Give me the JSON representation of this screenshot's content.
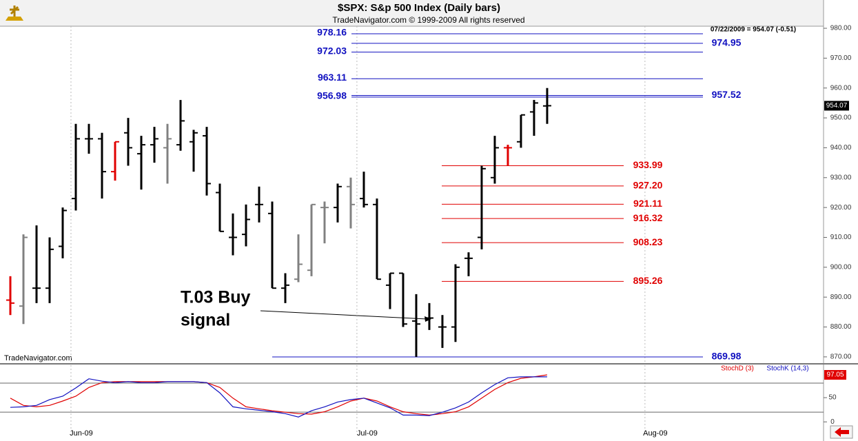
{
  "chart_data": [
    {
      "type": "ohlc",
      "title": "$SPX:  S&p 500 Index  (Daily bars)",
      "subtitle": "TradeNavigator.com © 1999-2009 All rights reserved",
      "header": "07/22/2009 = 954.07 (-0.51)",
      "watermark": "TradeNavigator.com",
      "annotation_lines": [
        "T.03 Buy",
        "signal"
      ],
      "categories": [
        null,
        null,
        null,
        null,
        null,
        null,
        null,
        null,
        null,
        null,
        null,
        null,
        null,
        null,
        null,
        null,
        null,
        null,
        null,
        null,
        null,
        null,
        null,
        null,
        null,
        null,
        null,
        null,
        null,
        null,
        null,
        null,
        null,
        null,
        null,
        null,
        null,
        null,
        null,
        null,
        null,
        null
      ],
      "open": [
        889,
        887,
        893,
        893,
        907,
        923,
        943,
        943,
        932,
        945,
        938,
        941,
        940,
        941,
        942,
        944,
        925,
        910,
        911,
        921,
        918,
        893,
        896,
        899,
        920,
        920,
        927,
        923,
        921,
        894,
        898,
        882,
        883,
        880,
        880,
        903,
        910,
        930,
        940,
        942,
        952,
        954
      ],
      "high": [
        897,
        911,
        914,
        910,
        920,
        948,
        948,
        945,
        942,
        950,
        944,
        947,
        948,
        956,
        946,
        947,
        928,
        918,
        921,
        927,
        922,
        898,
        911,
        921,
        922,
        928,
        930,
        932,
        923,
        898,
        898,
        891,
        888,
        884,
        901,
        905,
        934,
        944,
        941,
        951,
        956,
        960
      ],
      "low": [
        884,
        881,
        888,
        888,
        903,
        919,
        938,
        923,
        929,
        934,
        926,
        935,
        928,
        939,
        932,
        924,
        912,
        904,
        907,
        915,
        893,
        888,
        895,
        897,
        908,
        915,
        913,
        920,
        896,
        886,
        880,
        870,
        879,
        873,
        875,
        897,
        906,
        928,
        934,
        940,
        944,
        948
      ],
      "close": [
        888,
        910,
        893,
        906,
        919,
        943,
        943,
        932,
        942,
        940,
        941,
        943,
        943,
        949,
        945,
        928,
        912,
        910,
        916,
        921,
        893,
        894,
        901,
        921,
        920,
        927,
        921,
        921,
        896,
        898,
        881,
        881,
        883,
        880,
        900,
        903,
        933,
        940,
        940,
        951,
        955,
        954.07
      ],
      "bar_colors": [
        "#e00000",
        "#808080",
        "#000000",
        "#000000",
        "#000000",
        "#000000",
        "#000000",
        "#000000",
        "#e00000",
        "#000000",
        "#000000",
        "#000000",
        "#808080",
        "#000000",
        "#000000",
        "#000000",
        "#000000",
        "#000000",
        "#000000",
        "#000000",
        "#000000",
        "#000000",
        "#808080",
        "#808080",
        "#808080",
        "#000000",
        "#808080",
        "#000000",
        "#000000",
        "#000000",
        "#000000",
        "#000000",
        "#000000",
        "#000000",
        "#000000",
        "#000000",
        "#000000",
        "#000000",
        "#e00000",
        "#000000",
        "#000000",
        "#000000"
      ],
      "ylim": [
        867.9,
        980.7
      ],
      "yticks": [
        {
          "value": 870,
          "label": "870.00"
        },
        {
          "value": 880,
          "label": "880.00"
        },
        {
          "value": 890,
          "label": "890.00"
        },
        {
          "value": 900,
          "label": "900.00"
        },
        {
          "value": 910,
          "label": "910.00"
        },
        {
          "value": 920,
          "label": "920.00"
        },
        {
          "value": 930,
          "label": "930.00"
        },
        {
          "value": 940,
          "label": "940.00"
        },
        {
          "value": 950,
          "label": "950.00"
        },
        {
          "value": 960,
          "label": "960.00"
        },
        {
          "value": 970,
          "label": "970.00"
        },
        {
          "value": 980,
          "label": "980.00"
        }
      ],
      "blue_levels": [
        {
          "value": 978.16,
          "side": "left"
        },
        {
          "value": 974.95,
          "side": "right"
        },
        {
          "value": 972.03,
          "side": "left"
        },
        {
          "value": 963.11,
          "side": "left"
        },
        {
          "value": 957.52,
          "side": "right"
        },
        {
          "value": 956.98,
          "side": "left"
        },
        {
          "value": 869.98,
          "side": "right"
        }
      ],
      "red_levels": [
        {
          "value": 933.99
        },
        {
          "value": 927.2,
          "label": "927.20"
        },
        {
          "value": 921.11
        },
        {
          "value": 916.32
        },
        {
          "value": 908.23
        },
        {
          "value": 895.26
        }
      ],
      "level_colors": {
        "blue": "#1010c0",
        "red": "#e00000"
      }
    },
    {
      "type": "line",
      "series": [
        {
          "name": "StochD (3)",
          "color": "#e00000",
          "values": [
            49,
            34,
            31,
            34,
            43,
            53,
            71,
            81,
            83,
            83,
            83,
            83,
            83,
            83,
            83,
            81,
            71,
            49,
            31,
            27,
            23,
            20,
            17,
            16,
            21,
            31,
            43,
            49,
            43,
            31,
            21,
            17,
            14,
            17,
            21,
            31,
            49,
            67,
            81,
            90,
            93,
            97.05
          ]
        },
        {
          "name": "StochK (14,3)",
          "color": "#1010c0",
          "values": [
            30,
            31,
            34,
            46,
            53,
            70,
            89,
            84,
            81,
            83,
            81,
            81,
            83,
            83,
            83,
            81,
            60,
            31,
            27,
            24,
            21,
            17,
            10,
            23,
            31,
            41,
            46,
            49,
            39,
            29,
            14,
            14,
            13,
            20,
            29,
            41,
            60,
            77,
            91,
            93,
            93,
            93
          ]
        }
      ],
      "xlim": [
        -0.79,
        62.11
      ],
      "xticks": [
        {
          "value": 4.63,
          "label": "Jun-09"
        },
        {
          "value": 26.47,
          "label": "Jul-09"
        },
        {
          "value": 48.47,
          "label": "Aug-09"
        }
      ],
      "ylim": [
        -21,
        117
      ],
      "yticks": [
        0,
        50
      ],
      "yguides": [
        20,
        80
      ],
      "legend": "top-right"
    }
  ]
}
